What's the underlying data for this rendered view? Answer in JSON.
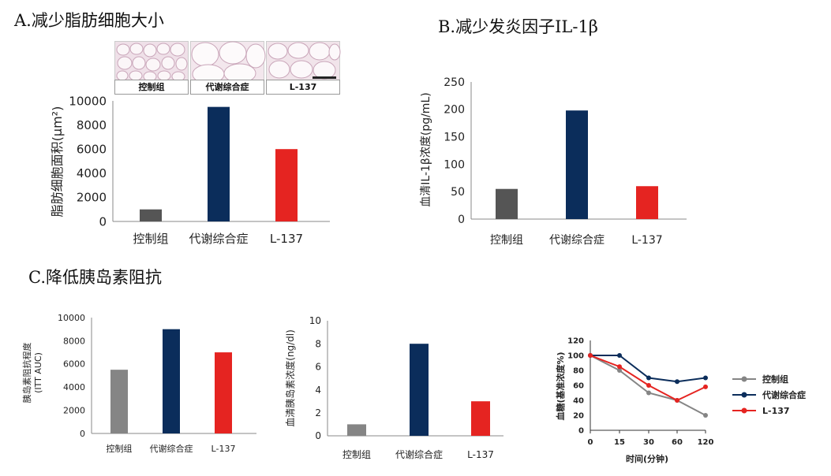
{
  "titles": {
    "a": "A.减少脂肪细胞大小",
    "b": "B.减少发炎因子IL-1β",
    "c": "C.降低胰岛素阻抗"
  },
  "micro_labels": [
    "控制组",
    "代谢综合症",
    "L-137"
  ],
  "colors": {
    "control": "#555555",
    "control_light": "#858585",
    "metabolic": "#0b2d5b",
    "l137": "#e52421"
  },
  "chart_data": [
    {
      "id": "fat-cell-size",
      "type": "bar",
      "categories": [
        "控制组",
        "代谢综合症",
        "L-137"
      ],
      "values": [
        1000,
        9500,
        6000
      ],
      "ylabel": "脂肪细胞面积(μm²)",
      "ylim": [
        0,
        10000
      ],
      "yticks": [
        0,
        2000,
        4000,
        6000,
        8000,
        10000
      ]
    },
    {
      "id": "il1b",
      "type": "bar",
      "categories": [
        "控制组",
        "代谢综合症",
        "L-137"
      ],
      "values": [
        55,
        198,
        60
      ],
      "ylabel": "血清IL-1β浓度(pg/mL)",
      "ylim": [
        0,
        250
      ],
      "yticks": [
        0,
        50,
        100,
        150,
        200,
        250
      ]
    },
    {
      "id": "itt-auc",
      "type": "bar",
      "categories": [
        "控制组",
        "代谢综合症",
        "L-137"
      ],
      "values": [
        5500,
        9000,
        7000
      ],
      "ylabel_lines": [
        "胰岛素阻抗程度",
        "(ITT AUC)"
      ],
      "ylim": [
        0,
        10000
      ],
      "yticks": [
        0,
        2000,
        4000,
        6000,
        8000,
        10000
      ]
    },
    {
      "id": "insulin",
      "type": "bar",
      "categories": [
        "控制组",
        "代谢综合症",
        "L-137"
      ],
      "values": [
        1,
        8,
        3
      ],
      "ylabel": "血清胰岛素浓度(ng/dl)",
      "ylim": [
        0,
        10
      ],
      "yticks": [
        0,
        2,
        4,
        6,
        8,
        10
      ]
    },
    {
      "id": "blood-glucose",
      "type": "line",
      "x": [
        0,
        15,
        30,
        60,
        120
      ],
      "xlabel": "时间(分钟)",
      "ylabel": "血糖(基准浓度%)",
      "ylim": [
        0,
        120
      ],
      "yticks": [
        0,
        20,
        40,
        60,
        80,
        100,
        120
      ],
      "series": [
        {
          "name": "控制组",
          "values": [
            100,
            80,
            50,
            40,
            20
          ]
        },
        {
          "name": "代谢综合症",
          "values": [
            100,
            100,
            70,
            65,
            70
          ]
        },
        {
          "name": "L-137",
          "values": [
            100,
            85,
            60,
            40,
            58
          ]
        }
      ],
      "legend": "right"
    }
  ]
}
